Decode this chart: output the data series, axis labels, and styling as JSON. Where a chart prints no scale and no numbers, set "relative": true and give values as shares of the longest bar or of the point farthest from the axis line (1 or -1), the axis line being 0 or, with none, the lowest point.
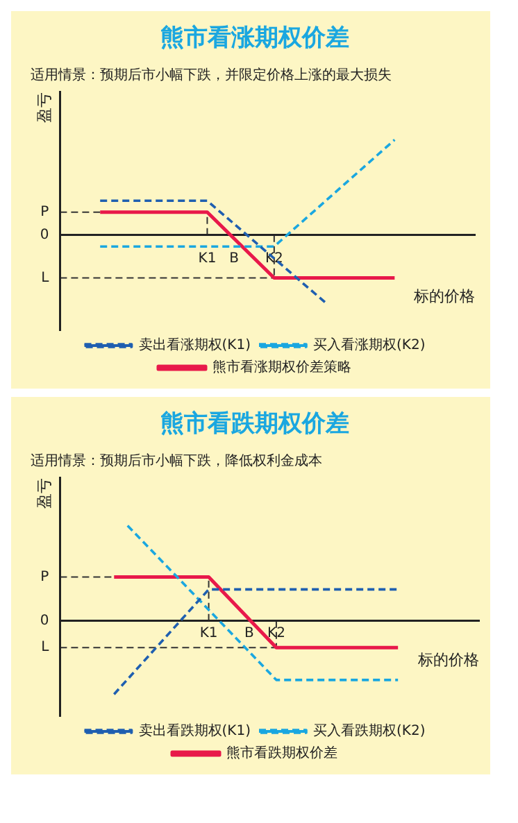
{
  "chart_data": [
    {
      "type": "line",
      "title": "熊市看涨期权价差",
      "subtitle": "适用情景：预期后市小幅下跌，并限定价格上涨的最大损失",
      "xlabel": "标的价格",
      "ylabel": "盈亏",
      "relative": true,
      "grid": false,
      "legend": "bottom",
      "marker": "none",
      "categories": [
        null,
        null,
        null,
        null,
        null,
        null,
        null,
        null,
        null,
        null,
        null,
        "K1",
        null,
        "B",
        null,
        null,
        "K2",
        null,
        null,
        null,
        null,
        null,
        null,
        null,
        null,
        null,
        null,
        null,
        null,
        null,
        null,
        null
      ],
      "annotations": [
        "0"
      ],
      "ref_lines": [
        {
          "axis": "y",
          "value": 0.24,
          "label": "P",
          "color": "#333333",
          "line_style": "dashed"
        },
        {
          "axis": "y",
          "value": -0.45,
          "label": "L",
          "color": "#333333",
          "line_style": "dashed"
        },
        {
          "axis": "x",
          "value": "K1",
          "color": "#333333",
          "line_style": "dashed"
        },
        {
          "axis": "x",
          "value": "K2",
          "color": "#333333",
          "line_style": "dashed"
        }
      ],
      "series": [
        {
          "name": "卖出看涨期权(K1)",
          "color": "#1f5fb0",
          "line_style": "dashed",
          "values": [
            null,
            null,
            null,
            0.36,
            null,
            null,
            null,
            null,
            null,
            null,
            null,
            0.36,
            null,
            null,
            null,
            null,
            null,
            null,
            null,
            null,
            -0.73,
            null,
            null,
            null,
            null,
            null,
            null,
            null,
            null,
            null,
            null,
            null
          ]
        },
        {
          "name": "买入看涨期权(K2)",
          "color": "#1aa7e0",
          "line_style": "dashed",
          "values": [
            null,
            null,
            null,
            -0.12,
            null,
            null,
            null,
            null,
            null,
            null,
            null,
            null,
            null,
            null,
            null,
            null,
            -0.12,
            null,
            null,
            null,
            null,
            null,
            null,
            null,
            null,
            1,
            null,
            null,
            null,
            null,
            null,
            null
          ]
        },
        {
          "name": "熊市看涨期权价差策略",
          "color": "#e8194a",
          "line_style": "solid",
          "values": [
            null,
            null,
            null,
            0.24,
            null,
            null,
            null,
            null,
            null,
            null,
            null,
            0.24,
            null,
            null,
            null,
            null,
            -0.45,
            null,
            null,
            null,
            null,
            null,
            null,
            null,
            null,
            -0.45,
            null,
            null,
            null,
            null,
            null,
            null
          ]
        }
      ]
    },
    {
      "type": "line",
      "title": "熊市看跌期权价差",
      "subtitle": "适用情景：预期后市小幅下跌，降低权利金成本",
      "xlabel": "标的价格",
      "ylabel": "盈亏",
      "relative": true,
      "grid": false,
      "legend": "bottom",
      "marker": "none",
      "categories": [
        null,
        null,
        null,
        null,
        null,
        null,
        null,
        null,
        null,
        null,
        null,
        "K1",
        null,
        null,
        "B",
        null,
        "K2",
        null,
        null,
        null,
        null,
        null,
        null,
        null,
        null,
        null,
        null,
        null,
        null,
        null,
        null,
        null
      ],
      "annotations": [
        "0"
      ],
      "ref_lines": [
        {
          "axis": "y",
          "value": 0.46,
          "label": "P",
          "color": "#333333",
          "line_style": "dashed"
        },
        {
          "axis": "y",
          "value": -0.28,
          "label": "L",
          "color": "#333333",
          "line_style": "dashed"
        },
        {
          "axis": "x",
          "value": "K1",
          "color": "#333333",
          "line_style": "dashed"
        },
        {
          "axis": "x",
          "value": "K2",
          "color": "#333333",
          "line_style": "dashed"
        }
      ],
      "series": [
        {
          "name": "卖出看跌期权(K1)",
          "color": "#1f5fb0",
          "line_style": "dashed",
          "values": [
            null,
            null,
            null,
            null,
            -0.77,
            null,
            null,
            null,
            null,
            null,
            null,
            0.33,
            null,
            null,
            null,
            null,
            null,
            null,
            null,
            null,
            null,
            null,
            null,
            null,
            null,
            0.33,
            null,
            null,
            null,
            null,
            null,
            null
          ]
        },
        {
          "name": "买入看跌期权(K2)",
          "color": "#1aa7e0",
          "line_style": "dashed",
          "values": [
            null,
            null,
            null,
            null,
            null,
            1,
            null,
            null,
            null,
            null,
            null,
            null,
            null,
            null,
            null,
            null,
            -0.62,
            null,
            null,
            null,
            null,
            null,
            null,
            null,
            null,
            -0.62,
            null,
            null,
            null,
            null,
            null,
            null
          ]
        },
        {
          "name": "熊市看跌期权价差",
          "color": "#e8194a",
          "line_style": "solid",
          "values": [
            null,
            null,
            null,
            null,
            0.46,
            null,
            null,
            null,
            null,
            null,
            null,
            0.46,
            null,
            null,
            null,
            null,
            -0.28,
            null,
            null,
            null,
            null,
            null,
            null,
            null,
            null,
            -0.28,
            null,
            null,
            null,
            null,
            null,
            null
          ]
        }
      ]
    }
  ]
}
